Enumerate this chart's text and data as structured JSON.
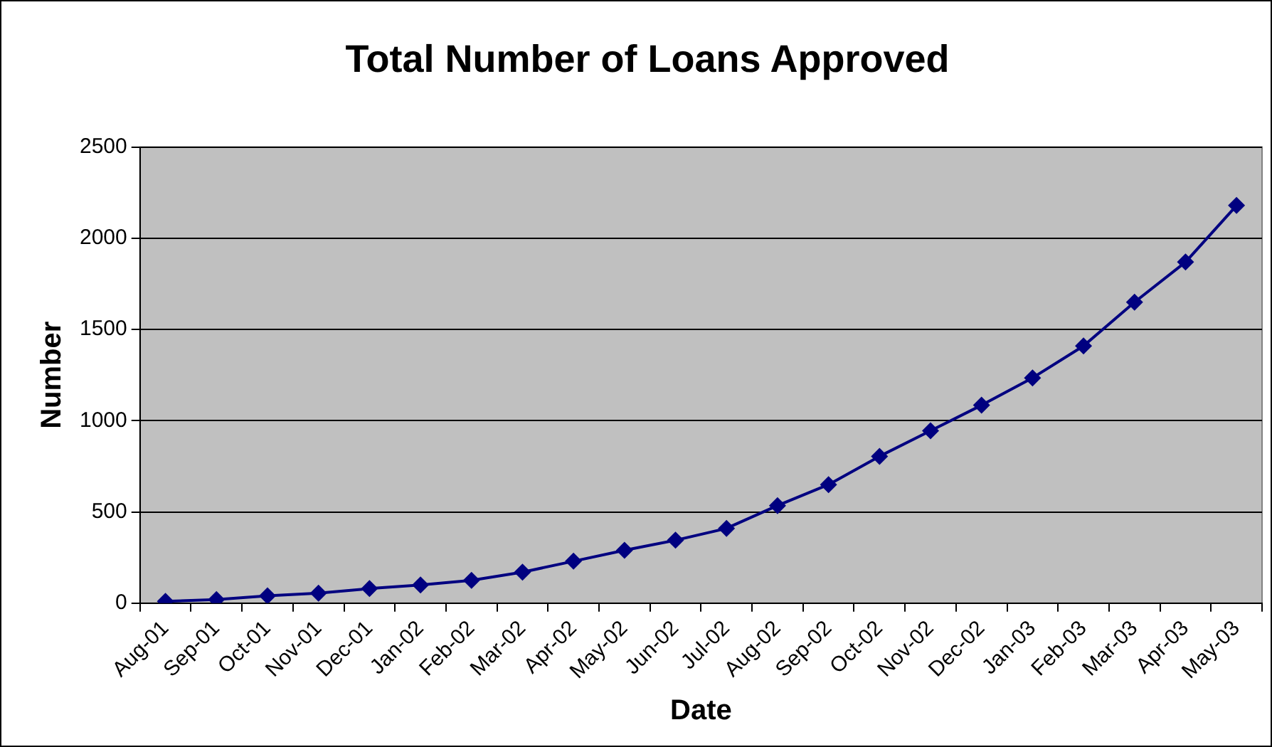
{
  "chart_data": {
    "type": "line",
    "title": "Total Number of Loans Approved",
    "xlabel": "Date",
    "ylabel": "Number",
    "categories": [
      "Aug-01",
      "Sep-01",
      "Oct-01",
      "Nov-01",
      "Dec-01",
      "Jan-02",
      "Feb-02",
      "Mar-02",
      "Apr-02",
      "May-02",
      "Jun-02",
      "Jul-02",
      "Aug-02",
      "Sep-02",
      "Oct-02",
      "Nov-02",
      "Dec-02",
      "Jan-03",
      "Feb-03",
      "Mar-03",
      "Apr-03",
      "May-03"
    ],
    "series": [
      {
        "color": "#000080",
        "values": [
          10,
          20,
          40,
          55,
          80,
          100,
          125,
          170,
          230,
          290,
          345,
          410,
          535,
          650,
          805,
          945,
          1085,
          1235,
          1410,
          1650,
          1870,
          2180
        ]
      }
    ],
    "ylim": [
      0,
      2500
    ],
    "yticks": [
      0,
      500,
      1000,
      1500,
      2000,
      2500
    ],
    "grid": "y",
    "legend": false,
    "marker": "diamond",
    "line_style": "solid"
  }
}
